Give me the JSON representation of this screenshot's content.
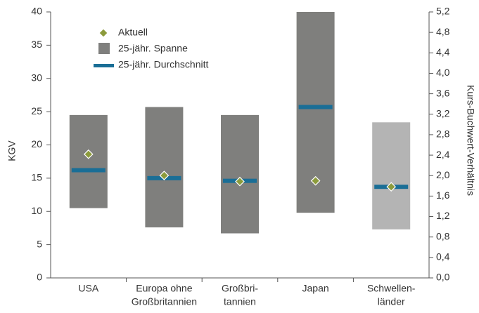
{
  "chart_data": {
    "type": "range-bar",
    "categories": [
      [
        "USA"
      ],
      [
        "Europa ohne",
        "Großbritannien"
      ],
      [
        "Großbri-",
        "tannien"
      ],
      [
        "Japan"
      ],
      [
        "Schwellen-",
        "länder"
      ]
    ],
    "ylabel": "KGV",
    "y2label": "Kurs-Buchwert-Verhältnis",
    "ylim": [
      0,
      40
    ],
    "yticks": [
      0,
      5,
      10,
      15,
      20,
      25,
      30,
      35,
      40
    ],
    "y2lim": [
      0,
      5.2
    ],
    "y2ticks": [
      {
        "value": 0,
        "label": "0,0"
      },
      {
        "value": 0.4,
        "label": "0,4"
      },
      {
        "value": 0.8,
        "label": "0,8"
      },
      {
        "value": 1.2,
        "label": "1,2"
      },
      {
        "value": 1.6,
        "label": "1,6"
      },
      {
        "value": 2.0,
        "label": "2,0"
      },
      {
        "value": 2.4,
        "label": "2,4"
      },
      {
        "value": 2.8,
        "label": "2,8"
      },
      {
        "value": 3.2,
        "label": "3,2"
      },
      {
        "value": 3.6,
        "label": "3,6"
      },
      {
        "value": 4.0,
        "label": "4,0"
      },
      {
        "value": 4.4,
        "label": "4,4"
      },
      {
        "value": 4.8,
        "label": "4,8"
      },
      {
        "value": 5.2,
        "label": "5,2"
      }
    ],
    "range": {
      "name": "25-jähr. Spanne",
      "color": "#7f7f7d",
      "colors": [
        "#7f7f7d",
        "#7f7f7d",
        "#7f7f7d",
        "#7f7f7d",
        "#b4b4b4"
      ],
      "low": [
        10.5,
        7.6,
        6.7,
        9.8,
        7.3
      ],
      "high": [
        24.5,
        25.7,
        24.5,
        40,
        23.4
      ]
    },
    "average": {
      "name": "25-jähr. Durchschnitt",
      "color": "#1a6e96",
      "values": [
        16.2,
        15.0,
        14.6,
        25.7,
        13.7
      ]
    },
    "current": {
      "name": "Aktuell",
      "color": "#8c9b3c",
      "values": [
        18.6,
        15.4,
        14.5,
        14.6,
        13.7
      ]
    }
  }
}
